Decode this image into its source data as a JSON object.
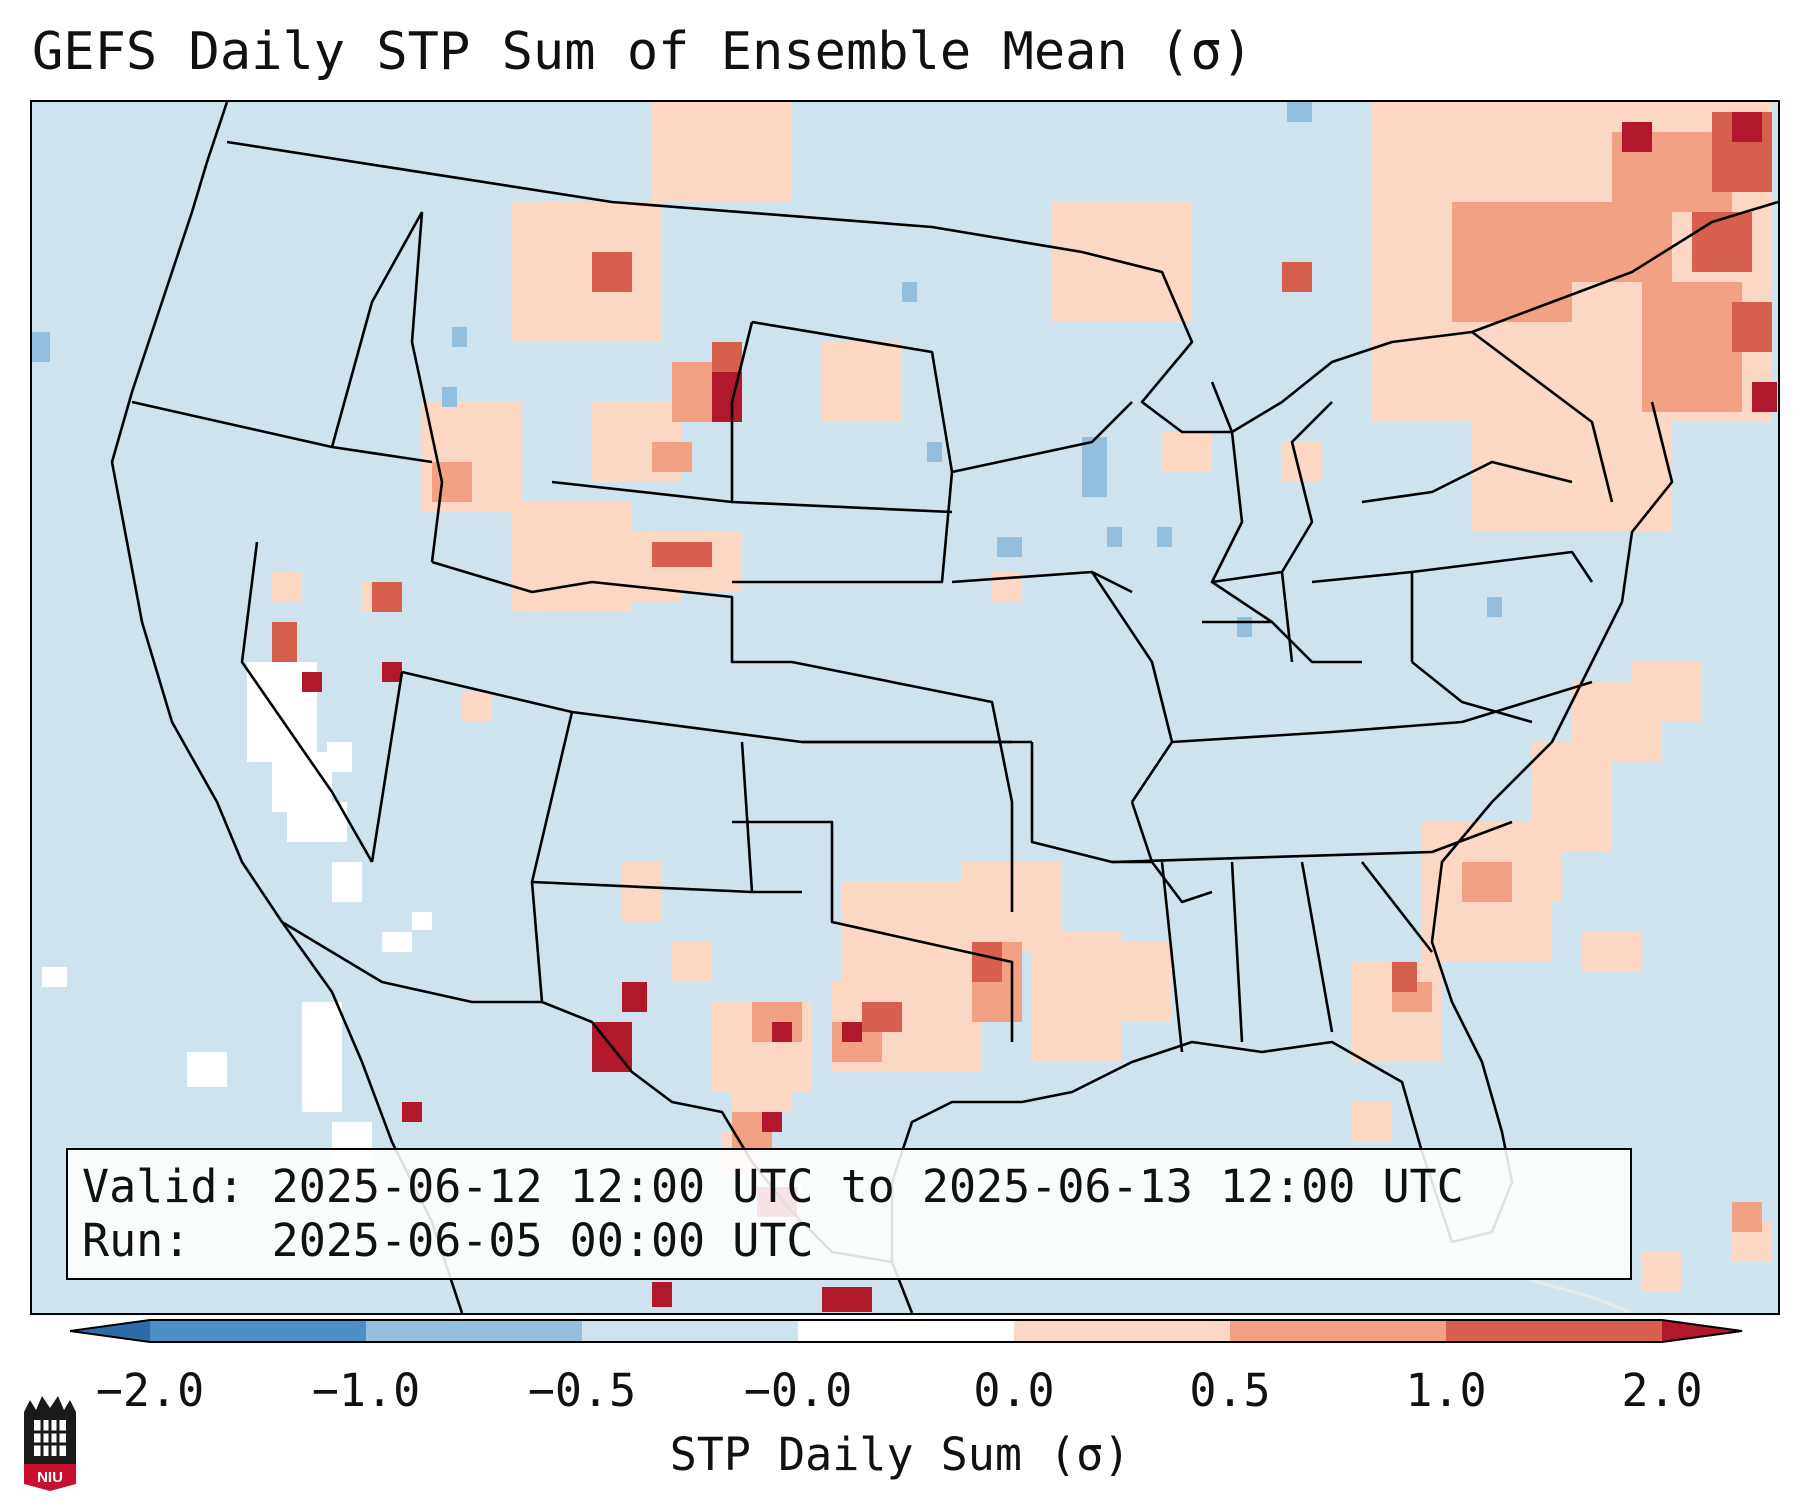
{
  "title": "GEFS Daily STP Sum of Ensemble Mean (σ)",
  "valid_box": {
    "valid_label": "Valid:",
    "valid_value": "2025-06-12 12:00 UTC to 2025-06-13 12:00 UTC",
    "run_label": "Run:",
    "run_value": "2025-06-05 00:00 UTC"
  },
  "colorbar": {
    "label": "STP Daily Sum (σ)",
    "ticks": [
      "−2.0",
      "−1.0",
      "−0.5",
      "−0.0",
      "0.0",
      "0.5",
      "1.0",
      "2.0"
    ],
    "bins": [
      {
        "range": "below −2.0",
        "color": "#2c6aa8"
      },
      {
        "range": "−2.0 to −1.0",
        "color": "#4d8fc4"
      },
      {
        "range": "−1.0 to −0.5",
        "color": "#93bfdc"
      },
      {
        "range": "−0.5 to −0.0",
        "color": "#cfe3ef"
      },
      {
        "range": "−0.0 to 0.0",
        "color": "#ffffff"
      },
      {
        "range": "0.0 to 0.5",
        "color": "#fbd7c4"
      },
      {
        "range": "0.5 to 1.0",
        "color": "#f2a283"
      },
      {
        "range": "1.0 to 2.0",
        "color": "#d6604d"
      },
      {
        "range": "above 2.0",
        "color": "#b2182b"
      }
    ]
  },
  "logo": {
    "text": "NIU"
  },
  "map": {
    "region": "Contiguous United States",
    "background_color": "#cfe3ef",
    "border_color": "#000000"
  }
}
